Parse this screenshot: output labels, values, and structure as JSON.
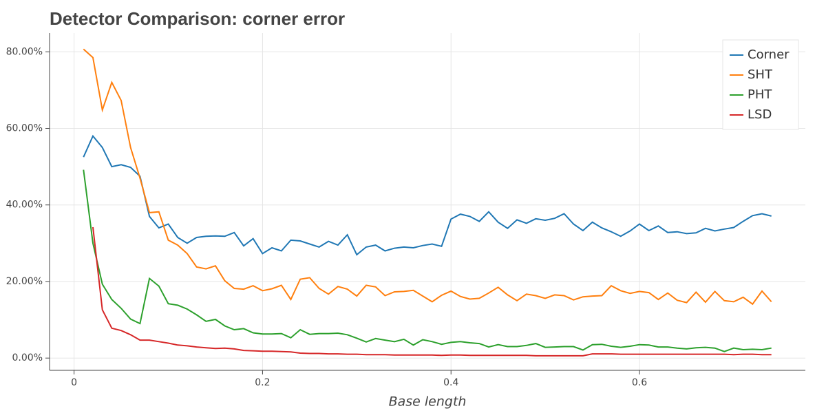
{
  "chart_data": {
    "type": "line",
    "title": "Detector Comparison: corner error",
    "xlabel": "Base length",
    "x": [
      0.01,
      0.02,
      0.03,
      0.04,
      0.05,
      0.06,
      0.07,
      0.08,
      0.09,
      0.1,
      0.11,
      0.12,
      0.13,
      0.14,
      0.15,
      0.16,
      0.17,
      0.18,
      0.19,
      0.2,
      0.21,
      0.22,
      0.23,
      0.24,
      0.25,
      0.26,
      0.27,
      0.28,
      0.29,
      0.3,
      0.31,
      0.32,
      0.33,
      0.34,
      0.35,
      0.36,
      0.37,
      0.38,
      0.39,
      0.4,
      0.41,
      0.42,
      0.43,
      0.44,
      0.45,
      0.46,
      0.47,
      0.48,
      0.49,
      0.5,
      0.51,
      0.52,
      0.53,
      0.54,
      0.55,
      0.56,
      0.57,
      0.58,
      0.59,
      0.6,
      0.61,
      0.62,
      0.63,
      0.64,
      0.65,
      0.66,
      0.67,
      0.68,
      0.69,
      0.7,
      0.71,
      0.72,
      0.73,
      0.74
    ],
    "series": [
      {
        "name": "Corner",
        "color": "#1f77b4",
        "values": [
          52.5,
          58,
          55,
          50,
          50.5,
          49.8,
          47.5,
          37,
          34,
          35,
          31.5,
          30,
          31.5,
          31.8,
          31.9,
          31.8,
          32.8,
          29.3,
          31.2,
          27.3,
          28.8,
          28,
          30.8,
          30.6,
          29.8,
          29,
          30.5,
          29.5,
          32.2,
          27,
          29,
          29.5,
          28,
          28.7,
          29,
          28.8,
          29.4,
          29.8,
          29.2,
          36.3,
          37.6,
          37,
          35.7,
          38.2,
          35.5,
          33.9,
          36.1,
          35.2,
          36.4,
          36,
          36.5,
          37.7,
          35,
          33.3,
          35.5,
          34,
          33,
          31.8,
          33.2,
          35,
          33.3,
          34.5,
          32.8,
          33,
          32.5,
          32.7,
          33.9,
          33.2,
          33.7,
          34.1,
          35.7,
          37.2,
          37.7,
          37.1
        ]
      },
      {
        "name": "SHT",
        "color": "#ff7f0e",
        "values": [
          80.7,
          78.5,
          64.8,
          72,
          67.3,
          55,
          47,
          38,
          38.2,
          30.8,
          29.5,
          27.3,
          23.8,
          23.3,
          24.1,
          20.2,
          18.2,
          18,
          18.9,
          17.6,
          18.1,
          19,
          15.3,
          20.6,
          21,
          18.2,
          16.7,
          18.7,
          18,
          16.2,
          19,
          18.6,
          16.3,
          17.3,
          17.4,
          17.7,
          16.2,
          14.7,
          16.4,
          17.5,
          16.1,
          15.4,
          15.6,
          17,
          18.5,
          16.5,
          15,
          16.7,
          16.3,
          15.6,
          16.5,
          16.3,
          15.2,
          16,
          16.2,
          16.3,
          18.9,
          17.6,
          16.9,
          17.4,
          17.1,
          15.3,
          17,
          15.1,
          14.5,
          17.2,
          14.6,
          17.4,
          15,
          14.7,
          15.9,
          14.1,
          17.5,
          14.7
        ]
      },
      {
        "name": "PHT",
        "color": "#2ca02c",
        "values": [
          49.2,
          30,
          19.3,
          15.3,
          13,
          10.2,
          9,
          20.8,
          18.8,
          14.2,
          13.8,
          12.8,
          11.3,
          9.6,
          10.1,
          8.4,
          7.4,
          7.7,
          6.6,
          6.3,
          6.3,
          6.4,
          5.3,
          7.4,
          6.2,
          6.4,
          6.4,
          6.5,
          6.1,
          5.2,
          4.2,
          5.1,
          4.7,
          4.3,
          4.9,
          3.4,
          4.8,
          4.3,
          3.6,
          4.1,
          4.3,
          4,
          3.8,
          2.9,
          3.5,
          3,
          3,
          3.3,
          3.8,
          2.8,
          2.9,
          3,
          3,
          2.1,
          3.5,
          3.6,
          3.1,
          2.8,
          3.1,
          3.5,
          3.4,
          2.9,
          2.9,
          2.6,
          2.4,
          2.7,
          2.8,
          2.6,
          1.7,
          2.6,
          2.2,
          2.3,
          2.2,
          2.6
        ]
      },
      {
        "name": "LSD",
        "color": "#d62728",
        "values": [
          null,
          34.2,
          12.6,
          7.8,
          7.2,
          6.1,
          4.7,
          4.7,
          4.3,
          3.9,
          3.4,
          3.2,
          2.9,
          2.7,
          2.5,
          2.6,
          2.4,
          2,
          1.9,
          1.8,
          1.8,
          1.7,
          1.6,
          1.3,
          1.2,
          1.2,
          1.1,
          1.1,
          1,
          1,
          0.9,
          0.9,
          0.9,
          0.8,
          0.8,
          0.8,
          0.8,
          0.8,
          0.7,
          0.8,
          0.8,
          0.7,
          0.7,
          0.7,
          0.7,
          0.7,
          0.7,
          0.7,
          0.6,
          0.6,
          0.6,
          0.6,
          0.6,
          0.6,
          1.1,
          1.1,
          1.1,
          1,
          1,
          1,
          1,
          1,
          1,
          1,
          1,
          1,
          1,
          1,
          1,
          0.9,
          1,
          1,
          0.9,
          0.9
        ]
      }
    ],
    "xlim": [
      -0.026,
      0.776
    ],
    "xticks": [
      0,
      0.2,
      0.4,
      0.6
    ],
    "ylim": [
      -3.2,
      84.9
    ],
    "yticks": [
      {
        "value": 0,
        "label": "0.00%"
      },
      {
        "value": 20,
        "label": "20.00%"
      },
      {
        "value": 40,
        "label": "40.00%"
      },
      {
        "value": 60,
        "label": "60.00%"
      },
      {
        "value": 80,
        "label": "80.00%"
      }
    ],
    "grid": true,
    "legend": "top-right"
  }
}
